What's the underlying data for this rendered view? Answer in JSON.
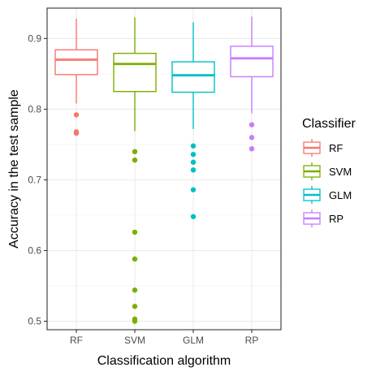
{
  "chart_data": {
    "type": "boxplot",
    "title": "",
    "xlabel": "Classification algorithm",
    "ylabel": "Accuracy in the test sample",
    "ylim": [
      0.488,
      0.943
    ],
    "yticks": [
      "0.5",
      "0.6",
      "0.7",
      "0.8",
      "0.9"
    ],
    "yticks_values": [
      0.5,
      0.6,
      0.7,
      0.8,
      0.9
    ],
    "categories": [
      "RF",
      "SVM",
      "GLM",
      "RP"
    ],
    "grid": true,
    "legend": {
      "title": "Classifier",
      "placement": "right",
      "entries": [
        "RF",
        "SVM",
        "GLM",
        "RP"
      ]
    },
    "series": [
      {
        "name": "RF",
        "color": "#F8766D",
        "q1": 0.849,
        "median": 0.87,
        "q3": 0.884,
        "whisker_low": 0.808,
        "whisker_high": 0.928,
        "outliers": [
          0.792,
          0.768,
          0.766
        ]
      },
      {
        "name": "SVM",
        "color": "#7CAE00",
        "q1": 0.825,
        "median": 0.864,
        "q3": 0.879,
        "whisker_low": 0.769,
        "whisker_high": 0.93,
        "outliers": [
          0.74,
          0.728,
          0.626,
          0.588,
          0.544,
          0.521,
          0.503,
          0.5
        ]
      },
      {
        "name": "GLM",
        "color": "#00BFC4",
        "q1": 0.824,
        "median": 0.848,
        "q3": 0.867,
        "whisker_low": 0.772,
        "whisker_high": 0.923,
        "outliers": [
          0.748,
          0.736,
          0.725,
          0.714,
          0.686,
          0.648
        ]
      },
      {
        "name": "RP",
        "color": "#C77CFF",
        "q1": 0.846,
        "median": 0.872,
        "q3": 0.889,
        "whisker_low": 0.794,
        "whisker_high": 0.931,
        "outliers": [
          0.778,
          0.76,
          0.744
        ]
      }
    ]
  }
}
